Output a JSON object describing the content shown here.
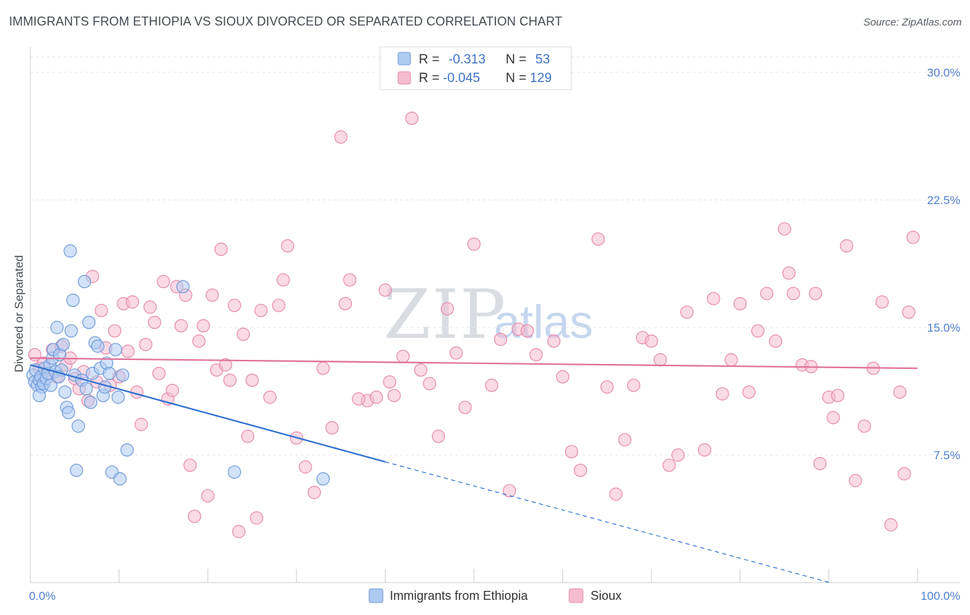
{
  "title": "IMMIGRANTS FROM ETHIOPIA VS SIOUX DIVORCED OR SEPARATED CORRELATION CHART",
  "source": "Source: ZipAtlas.com",
  "watermark": {
    "zip": "ZIP",
    "atlas": "atlas"
  },
  "colors": {
    "ethiopia_fill": "#aecbf2",
    "ethiopia_stroke": "#6f9ad8",
    "ethiopia_line": "#2f6fd0",
    "sioux_fill": "#f6bcd0",
    "sioux_stroke": "#e58aab",
    "sioux_line": "#e0709a",
    "grid": "#e3e6ea",
    "tick_label": "#4f7fd0"
  },
  "legend": {
    "rows": [
      {
        "r_label": "R =",
        "r_value": "-0.313",
        "n_label": "N =",
        "n_value": "53"
      },
      {
        "r_label": "R =",
        "r_value": "-0.045",
        "n_label": "N =",
        "n_value": "129"
      }
    ]
  },
  "chart_data": {
    "type": "scatter",
    "title": "IMMIGRANTS FROM ETHIOPIA VS SIOUX DIVORCED OR SEPARATED CORRELATION CHART",
    "xlabel": "",
    "ylabel": "Divorced or Separated",
    "xlim": [
      0,
      100
    ],
    "ylim": [
      0,
      31.5
    ],
    "x_tick_labels": [
      "0.0%",
      "100.0%"
    ],
    "y_ticks": [
      7.5,
      15.0,
      22.5,
      30.0
    ],
    "y_tick_labels": [
      "7.5%",
      "15.0%",
      "22.5%",
      "30.0%"
    ],
    "grid": true,
    "legend_position": "top-center",
    "series": [
      {
        "name": "Immigrants from Ethiopia",
        "trend": {
          "x0": 0,
          "y0": 12.8,
          "x1": 40,
          "y1": 7.1,
          "dashed_to_x": 100,
          "dashed_to_y": -1.4
        },
        "points": [
          [
            0.3,
            12.2
          ],
          [
            0.5,
            11.8
          ],
          [
            0.6,
            12.5
          ],
          [
            0.8,
            11.6
          ],
          [
            1.0,
            11.9
          ],
          [
            1.2,
            12.1
          ],
          [
            1.3,
            11.5
          ],
          [
            1.5,
            11.7
          ],
          [
            1.6,
            12.6
          ],
          [
            1.8,
            12.0
          ],
          [
            2.0,
            12.3
          ],
          [
            2.2,
            12.8
          ],
          [
            2.3,
            11.6
          ],
          [
            2.5,
            13.2
          ],
          [
            2.6,
            13.7
          ],
          [
            2.8,
            12.4
          ],
          [
            3.0,
            15.0
          ],
          [
            3.3,
            13.4
          ],
          [
            3.5,
            12.5
          ],
          [
            3.7,
            14.0
          ],
          [
            3.9,
            11.2
          ],
          [
            4.1,
            10.3
          ],
          [
            4.3,
            10.0
          ],
          [
            4.6,
            14.8
          ],
          [
            4.8,
            16.6
          ],
          [
            5.0,
            12.2
          ],
          [
            5.4,
            9.2
          ],
          [
            5.8,
            11.9
          ],
          [
            6.1,
            17.7
          ],
          [
            6.3,
            11.4
          ],
          [
            6.6,
            15.3
          ],
          [
            6.8,
            10.6
          ],
          [
            7.0,
            12.3
          ],
          [
            7.3,
            14.1
          ],
          [
            7.6,
            13.9
          ],
          [
            7.9,
            12.6
          ],
          [
            8.2,
            11.0
          ],
          [
            8.4,
            11.5
          ],
          [
            8.6,
            12.9
          ],
          [
            8.9,
            12.3
          ],
          [
            9.2,
            6.5
          ],
          [
            9.6,
            13.7
          ],
          [
            9.9,
            10.9
          ],
          [
            10.1,
            6.1
          ],
          [
            10.4,
            12.2
          ],
          [
            1.0,
            11.0
          ],
          [
            3.2,
            12.1
          ],
          [
            4.5,
            19.5
          ],
          [
            5.2,
            6.6
          ],
          [
            17.2,
            17.4
          ],
          [
            23.0,
            6.5
          ],
          [
            33.0,
            6.1
          ],
          [
            10.9,
            7.8
          ]
        ]
      },
      {
        "name": "Sioux",
        "trend": {
          "x0": 0,
          "y0": 13.2,
          "x1": 100,
          "y1": 12.6
        },
        "points": [
          [
            0.5,
            13.4
          ],
          [
            1.0,
            12.6
          ],
          [
            1.5,
            12.9
          ],
          [
            2.0,
            12.3
          ],
          [
            2.5,
            13.7
          ],
          [
            3.0,
            12.1
          ],
          [
            3.5,
            13.9
          ],
          [
            4.0,
            12.8
          ],
          [
            4.5,
            13.2
          ],
          [
            5.0,
            12.0
          ],
          [
            5.5,
            11.4
          ],
          [
            6.0,
            12.4
          ],
          [
            6.5,
            10.7
          ],
          [
            7.0,
            18.0
          ],
          [
            7.5,
            11.8
          ],
          [
            8.0,
            16.0
          ],
          [
            8.5,
            13.8
          ],
          [
            9.0,
            11.6
          ],
          [
            9.5,
            14.8
          ],
          [
            10.0,
            12.1
          ],
          [
            10.5,
            16.4
          ],
          [
            11.0,
            13.6
          ],
          [
            11.5,
            16.5
          ],
          [
            12.0,
            11.2
          ],
          [
            12.5,
            9.3
          ],
          [
            13.0,
            14.0
          ],
          [
            13.5,
            16.2
          ],
          [
            14.0,
            15.3
          ],
          [
            14.5,
            12.3
          ],
          [
            15.0,
            17.7
          ],
          [
            15.5,
            10.8
          ],
          [
            16.0,
            11.3
          ],
          [
            16.5,
            17.4
          ],
          [
            17.0,
            15.1
          ],
          [
            17.5,
            16.9
          ],
          [
            18.0,
            6.9
          ],
          [
            18.5,
            3.9
          ],
          [
            19.0,
            14.2
          ],
          [
            19.5,
            15.1
          ],
          [
            20.0,
            5.1
          ],
          [
            20.5,
            16.9
          ],
          [
            21.0,
            12.5
          ],
          [
            21.5,
            19.6
          ],
          [
            22.0,
            12.8
          ],
          [
            22.5,
            11.9
          ],
          [
            23.0,
            16.3
          ],
          [
            23.5,
            3.0
          ],
          [
            24.0,
            14.6
          ],
          [
            24.5,
            8.6
          ],
          [
            25.0,
            11.9
          ],
          [
            25.5,
            3.8
          ],
          [
            26.0,
            16.0
          ],
          [
            27.0,
            10.9
          ],
          [
            28.0,
            16.3
          ],
          [
            28.5,
            17.8
          ],
          [
            29.0,
            19.8
          ],
          [
            30.0,
            8.5
          ],
          [
            31.0,
            6.8
          ],
          [
            32.0,
            5.3
          ],
          [
            33.0,
            12.6
          ],
          [
            34.0,
            9.1
          ],
          [
            35.0,
            26.2
          ],
          [
            35.5,
            16.4
          ],
          [
            36.0,
            17.8
          ],
          [
            38.0,
            10.7
          ],
          [
            39.0,
            10.9
          ],
          [
            40.0,
            17.2
          ],
          [
            40.5,
            11.8
          ],
          [
            41.0,
            11.0
          ],
          [
            42.0,
            13.3
          ],
          [
            43.0,
            27.3
          ],
          [
            44.0,
            12.5
          ],
          [
            45.0,
            11.7
          ],
          [
            46.0,
            8.6
          ],
          [
            47.0,
            16.1
          ],
          [
            48.0,
            13.5
          ],
          [
            49.0,
            10.3
          ],
          [
            50.0,
            19.9
          ],
          [
            52.0,
            11.6
          ],
          [
            53.0,
            14.3
          ],
          [
            54.0,
            5.4
          ],
          [
            55.0,
            14.9
          ],
          [
            56.0,
            14.8
          ],
          [
            57.0,
            13.4
          ],
          [
            59.0,
            14.2
          ],
          [
            60.0,
            12.1
          ],
          [
            61.0,
            7.7
          ],
          [
            62.0,
            6.6
          ],
          [
            64.0,
            20.2
          ],
          [
            65.0,
            11.5
          ],
          [
            66.0,
            5.2
          ],
          [
            67.0,
            8.4
          ],
          [
            68.0,
            11.6
          ],
          [
            69.0,
            14.4
          ],
          [
            70.0,
            14.2
          ],
          [
            71.0,
            13.1
          ],
          [
            72.0,
            6.9
          ],
          [
            73.0,
            7.5
          ],
          [
            74.0,
            15.9
          ],
          [
            76.0,
            7.8
          ],
          [
            77.0,
            16.7
          ],
          [
            78.0,
            11.1
          ],
          [
            79.0,
            13.1
          ],
          [
            80.0,
            16.4
          ],
          [
            81.0,
            11.2
          ],
          [
            82.0,
            14.8
          ],
          [
            83.0,
            17.0
          ],
          [
            84.0,
            14.2
          ],
          [
            85.0,
            20.8
          ],
          [
            85.5,
            18.2
          ],
          [
            86.0,
            17.0
          ],
          [
            87.0,
            12.8
          ],
          [
            88.0,
            12.7
          ],
          [
            88.5,
            17.0
          ],
          [
            89.0,
            7.0
          ],
          [
            90.0,
            10.9
          ],
          [
            90.5,
            9.7
          ],
          [
            91.0,
            11.0
          ],
          [
            92.0,
            19.8
          ],
          [
            93.0,
            6.0
          ],
          [
            94.0,
            9.2
          ],
          [
            95.0,
            12.6
          ],
          [
            96.0,
            16.5
          ],
          [
            97.0,
            3.4
          ],
          [
            98.0,
            11.2
          ],
          [
            98.5,
            6.4
          ],
          [
            99.0,
            15.9
          ],
          [
            99.5,
            20.3
          ],
          [
            37.0,
            10.8
          ]
        ]
      }
    ]
  }
}
